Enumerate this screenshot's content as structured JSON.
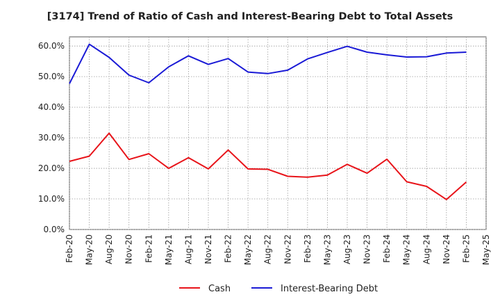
{
  "chart_data": {
    "type": "line",
    "title": "[3174]  Trend of Ratio of Cash and Interest-Bearing Debt to Total Assets",
    "xlabel": "",
    "ylabel": "",
    "categories": [
      "Feb-20",
      "May-20",
      "Aug-20",
      "Nov-20",
      "Feb-21",
      "May-21",
      "Aug-21",
      "Nov-21",
      "Feb-22",
      "May-22",
      "Aug-22",
      "Nov-22",
      "Feb-23",
      "May-23",
      "Aug-23",
      "Nov-23",
      "Feb-24",
      "May-24",
      "Aug-24",
      "Nov-24",
      "Feb-25",
      "May-25"
    ],
    "y_ticks": [
      "0.0%",
      "10.0%",
      "20.0%",
      "30.0%",
      "40.0%",
      "50.0%",
      "60.0%"
    ],
    "ylim": [
      0,
      63
    ],
    "grid": true,
    "legend_position": "bottom-center",
    "series": [
      {
        "name": "Cash",
        "color": "#e8141a",
        "values": [
          22.3,
          24.0,
          31.5,
          22.9,
          24.8,
          20.0,
          23.5,
          19.8,
          26.0,
          19.8,
          19.7,
          17.4,
          17.1,
          17.8,
          21.3,
          18.4,
          23.0,
          15.6,
          14.1,
          9.8,
          15.5,
          null
        ]
      },
      {
        "name": "Interest-Bearing Debt",
        "color": "#1a1ad6",
        "values": [
          47.7,
          60.6,
          56.3,
          50.5,
          48.0,
          53.2,
          56.8,
          54.0,
          55.9,
          51.5,
          51.0,
          52.1,
          55.8,
          57.9,
          59.9,
          58.0,
          57.1,
          56.4,
          56.5,
          57.7,
          58.0,
          null
        ]
      }
    ]
  }
}
